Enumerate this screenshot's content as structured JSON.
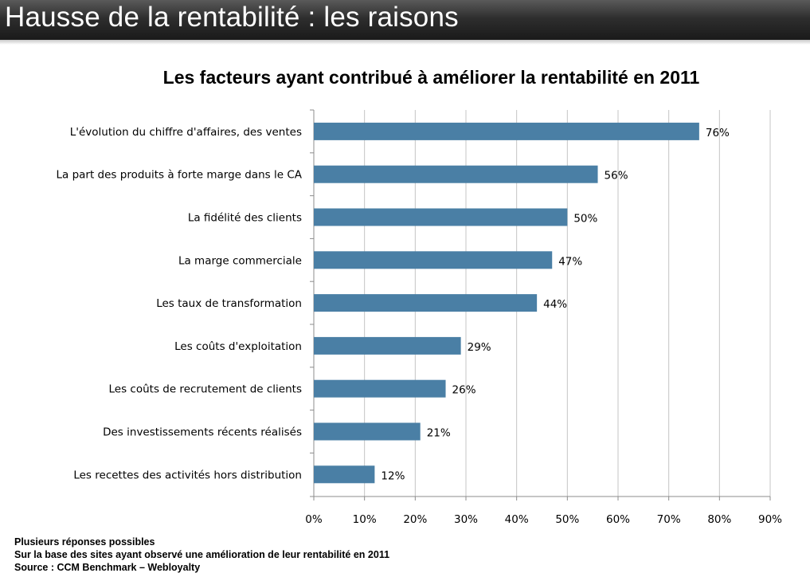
{
  "header": {
    "title": "Hausse de la rentabilité : les raisons"
  },
  "chart_data": {
    "type": "bar",
    "orientation": "horizontal",
    "title": "Les facteurs ayant contribué à améliorer la rentabilité en 2011",
    "categories": [
      "L'évolution du chiffre d'affaires, des ventes",
      "La part des produits à forte marge dans le CA",
      "La fidélité des clients",
      "La marge commerciale",
      "Les taux de transformation",
      "Les coûts d'exploitation",
      "Les coûts de recrutement de clients",
      "Des investissements récents réalisés",
      "Les recettes des activités hors distribution"
    ],
    "values": [
      76,
      56,
      50,
      47,
      44,
      29,
      26,
      21,
      12
    ],
    "value_labels": [
      "76%",
      "56%",
      "50%",
      "47%",
      "44%",
      "29%",
      "26%",
      "21%",
      "12%"
    ],
    "xlim": [
      0,
      90
    ],
    "xticks": [
      0,
      10,
      20,
      30,
      40,
      50,
      60,
      70,
      80,
      90
    ],
    "xtick_labels": [
      "0%",
      "10%",
      "20%",
      "30%",
      "40%",
      "50%",
      "60%",
      "70%",
      "80%",
      "90%"
    ],
    "grid": "vertical",
    "bar_color": "#4a7fa5"
  },
  "notes": {
    "line1": "Plusieurs réponses possibles",
    "line2": "Sur la base des sites ayant observé une amélioration de leur rentabilité en 2011",
    "line3": "Source : CCM Benchmark – Webloyalty"
  }
}
